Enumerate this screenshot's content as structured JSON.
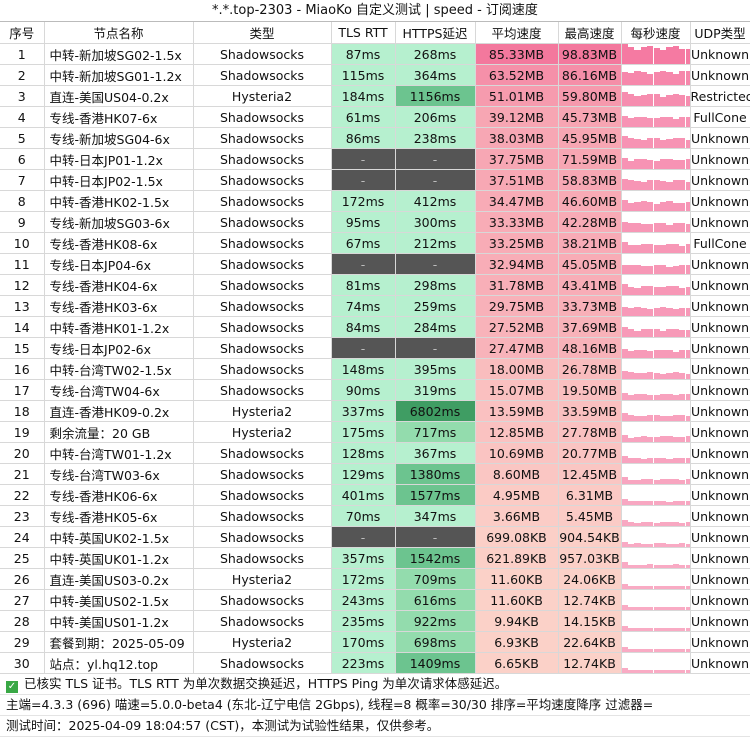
{
  "window_title": "*.*.top-2303 - MiaoKo 自定义测试 | speed - 订阅速度",
  "headers": [
    "序号",
    "节点名称",
    "类型",
    "TLS RTT",
    "HTTPS延迟",
    "平均速度",
    "最高速度",
    "每秒速度",
    "UDP类型"
  ],
  "rows": [
    {
      "no": "1",
      "name": "中转-新加坡SG02-1.5x",
      "type": "Shadowsocks",
      "tls": "87ms",
      "https": "268ms",
      "avg": "85.33MB",
      "max": "98.83MB",
      "udp": "Unknown",
      "avg_frac": 1.0,
      "https_v": 268
    },
    {
      "no": "2",
      "name": "中转-新加坡SG01-1.2x",
      "type": "Shadowsocks",
      "tls": "115ms",
      "https": "364ms",
      "avg": "63.52MB",
      "max": "86.16MB",
      "udp": "Unknown",
      "avg_frac": 0.78,
      "https_v": 364
    },
    {
      "no": "3",
      "name": "直连-美国US04-0.2x",
      "type": "Hysteria2",
      "tls": "184ms",
      "https": "1156ms",
      "avg": "51.01MB",
      "max": "59.80MB",
      "udp": "RestrictedCone",
      "avg_frac": 0.68,
      "https_v": 1156
    },
    {
      "no": "4",
      "name": "专线-香港HK07-6x",
      "type": "Shadowsocks",
      "tls": "61ms",
      "https": "206ms",
      "avg": "39.12MB",
      "max": "45.73MB",
      "udp": "FullCone",
      "avg_frac": 0.58,
      "https_v": 206
    },
    {
      "no": "5",
      "name": "专线-新加坡SG04-6x",
      "type": "Shadowsocks",
      "tls": "86ms",
      "https": "238ms",
      "avg": "38.03MB",
      "max": "45.95MB",
      "udp": "Unknown",
      "avg_frac": 0.57,
      "https_v": 238
    },
    {
      "no": "6",
      "name": "中转-日本JP01-1.2x",
      "type": "Shadowsocks",
      "tls": "-",
      "https": "-",
      "avg": "37.75MB",
      "max": "71.59MB",
      "udp": "Unknown",
      "avg_frac": 0.57,
      "https_v": 0
    },
    {
      "no": "7",
      "name": "中转-日本JP02-1.5x",
      "type": "Shadowsocks",
      "tls": "-",
      "https": "-",
      "avg": "37.51MB",
      "max": "58.83MB",
      "udp": "Unknown",
      "avg_frac": 0.56,
      "https_v": 0
    },
    {
      "no": "8",
      "name": "中转-香港HK02-1.5x",
      "type": "Shadowsocks",
      "tls": "172ms",
      "https": "412ms",
      "avg": "34.47MB",
      "max": "46.60MB",
      "udp": "Unknown",
      "avg_frac": 0.53,
      "https_v": 412
    },
    {
      "no": "9",
      "name": "专线-新加坡SG03-6x",
      "type": "Shadowsocks",
      "tls": "95ms",
      "https": "300ms",
      "avg": "33.33MB",
      "max": "42.28MB",
      "udp": "Unknown",
      "avg_frac": 0.52,
      "https_v": 300
    },
    {
      "no": "10",
      "name": "专线-香港HK08-6x",
      "type": "Shadowsocks",
      "tls": "67ms",
      "https": "212ms",
      "avg": "33.25MB",
      "max": "38.21MB",
      "udp": "FullCone",
      "avg_frac": 0.52,
      "https_v": 212
    },
    {
      "no": "11",
      "name": "专线-日本JP04-6x",
      "type": "Shadowsocks",
      "tls": "-",
      "https": "-",
      "avg": "32.94MB",
      "max": "45.05MB",
      "udp": "Unknown",
      "avg_frac": 0.51,
      "https_v": 0
    },
    {
      "no": "12",
      "name": "专线-香港HK04-6x",
      "type": "Shadowsocks",
      "tls": "81ms",
      "https": "298ms",
      "avg": "31.78MB",
      "max": "43.41MB",
      "udp": "Unknown",
      "avg_frac": 0.5,
      "https_v": 298
    },
    {
      "no": "13",
      "name": "专线-香港HK03-6x",
      "type": "Shadowsocks",
      "tls": "74ms",
      "https": "259ms",
      "avg": "29.75MB",
      "max": "33.73MB",
      "udp": "Unknown",
      "avg_frac": 0.48,
      "https_v": 259
    },
    {
      "no": "14",
      "name": "中转-香港HK01-1.2x",
      "type": "Shadowsocks",
      "tls": "84ms",
      "https": "284ms",
      "avg": "27.52MB",
      "max": "37.69MB",
      "udp": "Unknown",
      "avg_frac": 0.46,
      "https_v": 284
    },
    {
      "no": "15",
      "name": "专线-日本JP02-6x",
      "type": "Shadowsocks",
      "tls": "-",
      "https": "-",
      "avg": "27.47MB",
      "max": "48.16MB",
      "udp": "Unknown",
      "avg_frac": 0.46,
      "https_v": 0
    },
    {
      "no": "16",
      "name": "中转-台湾TW02-1.5x",
      "type": "Shadowsocks",
      "tls": "148ms",
      "https": "395ms",
      "avg": "18.00MB",
      "max": "26.78MB",
      "udp": "Unknown",
      "avg_frac": 0.37,
      "https_v": 395
    },
    {
      "no": "17",
      "name": "专线-台湾TW04-6x",
      "type": "Shadowsocks",
      "tls": "90ms",
      "https": "319ms",
      "avg": "15.07MB",
      "max": "19.50MB",
      "udp": "Unknown",
      "avg_frac": 0.34,
      "https_v": 319
    },
    {
      "no": "18",
      "name": "直连-香港HK09-0.2x",
      "type": "Hysteria2",
      "tls": "337ms",
      "https": "6802ms",
      "avg": "13.59MB",
      "max": "33.59MB",
      "udp": "Unknown",
      "avg_frac": 0.33,
      "https_v": 6802
    },
    {
      "no": "19",
      "name": "剩余流量：20 GB",
      "type": "Hysteria2",
      "tls": "175ms",
      "https": "717ms",
      "avg": "12.85MB",
      "max": "27.78MB",
      "udp": "Unknown",
      "avg_frac": 0.32,
      "https_v": 717
    },
    {
      "no": "20",
      "name": "中转-台湾TW01-1.2x",
      "type": "Shadowsocks",
      "tls": "128ms",
      "https": "367ms",
      "avg": "10.69MB",
      "max": "20.77MB",
      "udp": "Unknown",
      "avg_frac": 0.3,
      "https_v": 367
    },
    {
      "no": "21",
      "name": "专线-台湾TW03-6x",
      "type": "Shadowsocks",
      "tls": "129ms",
      "https": "1380ms",
      "avg": "8.60MB",
      "max": "12.45MB",
      "udp": "Unknown",
      "avg_frac": 0.28,
      "https_v": 1380
    },
    {
      "no": "22",
      "name": "专线-香港HK06-6x",
      "type": "Shadowsocks",
      "tls": "401ms",
      "https": "1577ms",
      "avg": "4.95MB",
      "max": "6.31MB",
      "udp": "Unknown",
      "avg_frac": 0.24,
      "https_v": 1577
    },
    {
      "no": "23",
      "name": "专线-香港HK05-6x",
      "type": "Shadowsocks",
      "tls": "70ms",
      "https": "347ms",
      "avg": "3.66MB",
      "max": "5.45MB",
      "udp": "Unknown",
      "avg_frac": 0.23,
      "https_v": 347
    },
    {
      "no": "24",
      "name": "中转-英国UK02-1.5x",
      "type": "Shadowsocks",
      "tls": "-",
      "https": "-",
      "avg": "699.08KB",
      "max": "904.54KB",
      "udp": "Unknown",
      "avg_frac": 0.2,
      "https_v": 0
    },
    {
      "no": "25",
      "name": "中转-英国UK01-1.2x",
      "type": "Shadowsocks",
      "tls": "357ms",
      "https": "1542ms",
      "avg": "621.89KB",
      "max": "957.03KB",
      "udp": "Unknown",
      "avg_frac": 0.2,
      "https_v": 1542
    },
    {
      "no": "26",
      "name": "直连-美国US03-0.2x",
      "type": "Hysteria2",
      "tls": "172ms",
      "https": "709ms",
      "avg": "11.60KB",
      "max": "24.06KB",
      "udp": "Unknown",
      "avg_frac": 0.18,
      "https_v": 709
    },
    {
      "no": "27",
      "name": "中转-美国US02-1.5x",
      "type": "Shadowsocks",
      "tls": "243ms",
      "https": "616ms",
      "avg": "11.60KB",
      "max": "12.74KB",
      "udp": "Unknown",
      "avg_frac": 0.18,
      "https_v": 616
    },
    {
      "no": "28",
      "name": "中转-美国US01-1.2x",
      "type": "Shadowsocks",
      "tls": "235ms",
      "https": "922ms",
      "avg": "9.94KB",
      "max": "14.15KB",
      "udp": "Unknown",
      "avg_frac": 0.18,
      "https_v": 922
    },
    {
      "no": "29",
      "name": "套餐到期：2025-05-09",
      "type": "Hysteria2",
      "tls": "170ms",
      "https": "698ms",
      "avg": "6.93KB",
      "max": "22.64KB",
      "udp": "Unknown",
      "avg_frac": 0.18,
      "https_v": 698
    },
    {
      "no": "30",
      "name": "站点：yl.hq12.top",
      "type": "Shadowsocks",
      "tls": "223ms",
      "https": "1409ms",
      "avg": "6.65KB",
      "max": "12.74KB",
      "udp": "Unknown",
      "avg_frac": 0.18,
      "https_v": 1409
    }
  ],
  "footer": {
    "note": "已核实 TLS 证书。TLS RTT 为单次数据交换延迟，HTTPS Ping 为单次请求体感延迟。",
    "info": "主端=4.3.3 (696) 喵速=5.0.0-beta4 (东北-辽宁电信 2Gbps), 线程=8 概率=30/30 排序=平均速度降序 过滤器=",
    "time": "测试时间：2025-04-09 18:04:57 (CST)，本测试为试验性结果，仅供参考。"
  },
  "colors": {
    "tls_bg": "#b6f0cf",
    "na_bg": "#555555",
    "speed_high": "#f3789d",
    "speed_low": "#fde5d2",
    "bar": "#f57aa2",
    "check": "#39a845"
  }
}
